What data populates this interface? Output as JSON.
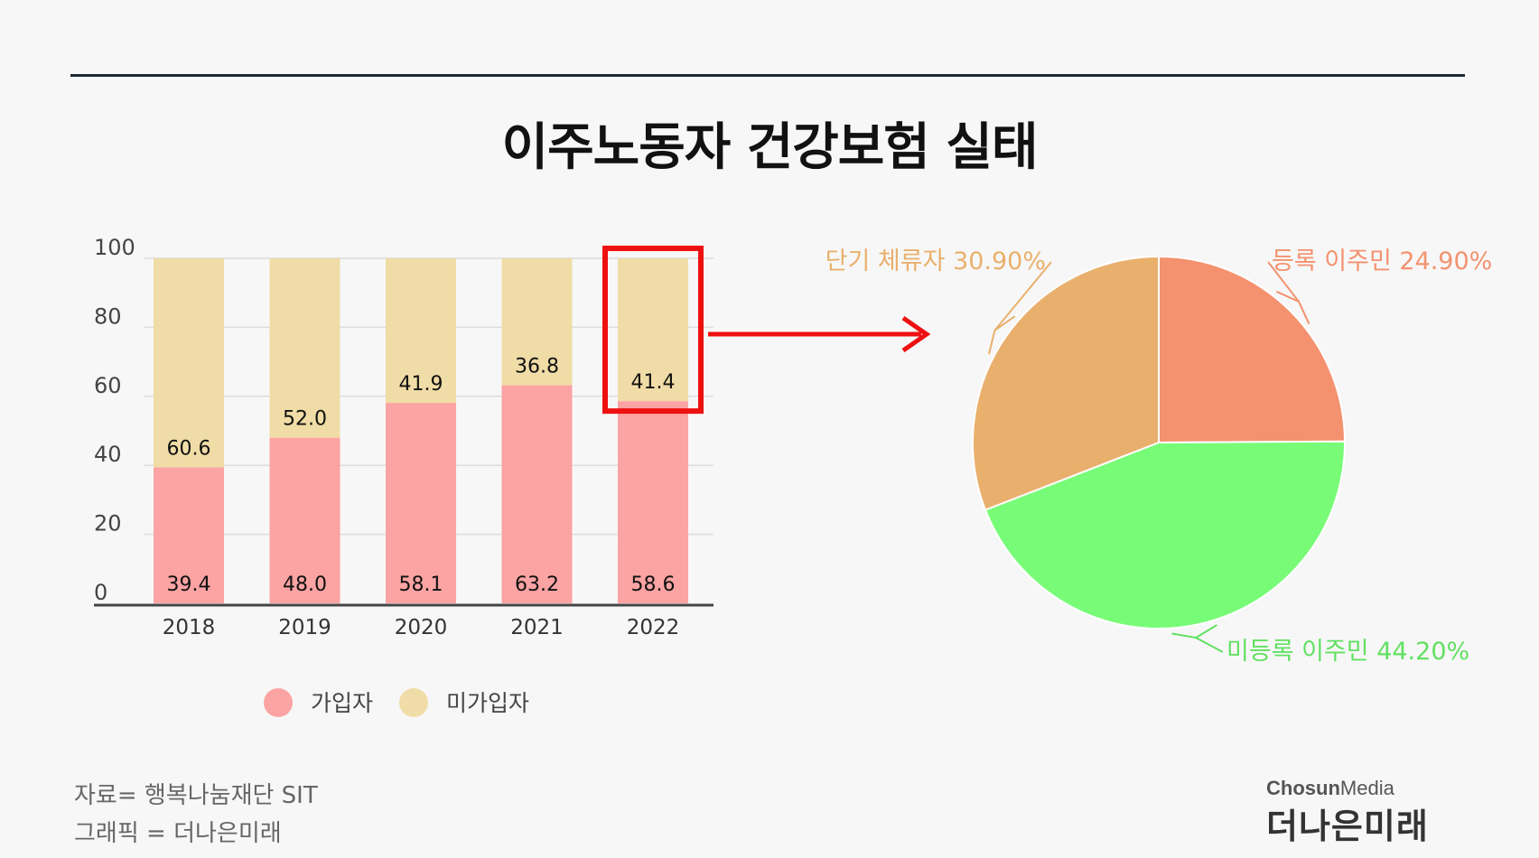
{
  "title": "이주노동자 건강보험 실태",
  "chart_data": [
    {
      "type": "bar",
      "stacked": true,
      "categories": [
        "2018",
        "2019",
        "2020",
        "2021",
        "2022"
      ],
      "series": [
        {
          "name": "가입자",
          "values": [
            39.4,
            48.0,
            58.1,
            63.2,
            58.6
          ],
          "labels": [
            "39.4",
            "48.0",
            "58.1",
            "63.2",
            "58.6"
          ],
          "color": "#fca3a3"
        },
        {
          "name": "미가입자",
          "values": [
            60.6,
            52.0,
            41.9,
            36.8,
            41.4
          ],
          "labels": [
            "60.6",
            "52.0",
            "41.9",
            "36.8",
            "41.4"
          ],
          "color": "#f0dca6"
        }
      ],
      "yticks": [
        "0",
        "20",
        "40",
        "60",
        "80",
        "100"
      ],
      "ylim": [
        0,
        100
      ],
      "grid": true,
      "legend": "bottom",
      "highlight_category": "2022",
      "highlight_color": "#ee1111"
    },
    {
      "type": "pie",
      "slices": [
        {
          "label": "등록 이주민 24.90%",
          "value": 24.9,
          "color": "#f4926f"
        },
        {
          "label": "미등록 이주민 44.20%",
          "value": 44.2,
          "color": "#78fc78"
        },
        {
          "label": "단기 체류자 30.90%",
          "value": 30.9,
          "color": "#e9b06d"
        }
      ],
      "label_colors": [
        "#f4926f",
        "#62e062",
        "#e9b06d"
      ]
    }
  ],
  "source": {
    "line1": "자료= 행복나눔재단 SIT",
    "line2": "그래픽 = 더나은미래"
  },
  "brand": {
    "en_bold": "Chosun",
    "en_light": "Media",
    "ko": "더나은미래"
  }
}
